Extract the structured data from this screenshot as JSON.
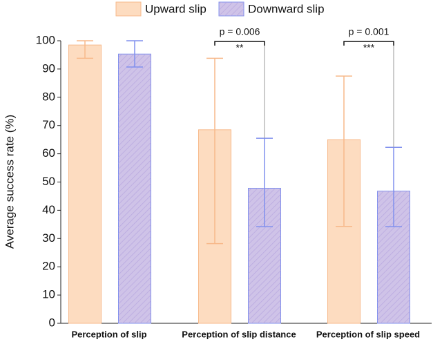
{
  "chart_data": {
    "type": "bar",
    "ylabel": "Average success rate (%)",
    "categories": [
      "Perception of slip",
      "Perception of slip distance",
      "Perception of slip speed"
    ],
    "series": [
      {
        "name": "Upward slip",
        "color": "#fddcc0",
        "edgecolor": "#f7b98a",
        "hatch": false,
        "values": [
          98.5,
          68.5,
          65
        ],
        "lower": [
          93.8,
          28.2,
          34.3
        ],
        "upper": [
          100,
          93.8,
          87.5
        ]
      },
      {
        "name": "Downward slip",
        "color": "#cfc3e8",
        "edgecolor": "#8090ee",
        "hatch": true,
        "values": [
          95.3,
          47.8,
          46.8
        ],
        "lower": [
          90.7,
          34.2,
          34.2
        ],
        "upper": [
          100,
          65.5,
          62.3
        ]
      }
    ],
    "ylim": [
      0,
      100
    ],
    "yticks": [
      0,
      10,
      20,
      30,
      40,
      50,
      60,
      70,
      80,
      90,
      100
    ],
    "annotations": [
      {
        "p": "p = 0.006",
        "stars": "**"
      },
      {
        "p": "p = 0.001",
        "stars": "***"
      }
    ]
  }
}
